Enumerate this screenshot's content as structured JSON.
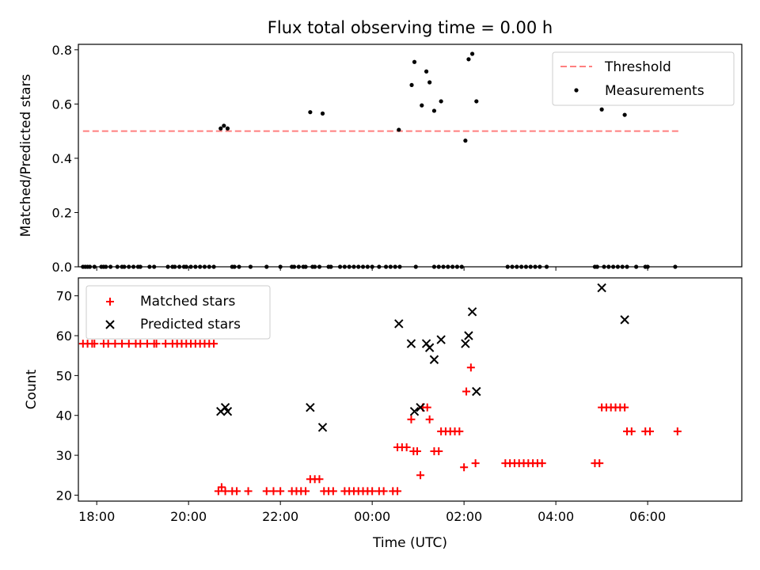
{
  "title": "Flux total observing time = 0.00 h",
  "chart_data": [
    {
      "type": "scatter",
      "panel": "top",
      "ylabel": "Matched/Predicted stars",
      "xlabel": "",
      "x_unit": "hours since 00:00 UTC",
      "xlim": [
        -6.4,
        8.05
      ],
      "ylim": [
        0,
        0.82
      ],
      "yticks": [
        0.0,
        0.2,
        0.4,
        0.6,
        0.8
      ],
      "ytick_labels": [
        "0.0",
        "0.2",
        "0.4",
        "0.6",
        "0.8"
      ],
      "legend_position": "upper right",
      "threshold": {
        "name": "Threshold",
        "value": 0.5,
        "x_range": [
          -6.3,
          6.7
        ],
        "color": "#ff7f7f"
      },
      "series": [
        {
          "name": "Measurements",
          "color": "#000000",
          "points": [
            [
              -6.3,
              0
            ],
            [
              -6.25,
              0
            ],
            [
              -6.2,
              0
            ],
            [
              -6.15,
              0
            ],
            [
              -6.05,
              0
            ],
            [
              -5.9,
              0
            ],
            [
              -5.85,
              0
            ],
            [
              -5.8,
              0
            ],
            [
              -5.7,
              0
            ],
            [
              -5.55,
              0
            ],
            [
              -5.45,
              0
            ],
            [
              -5.4,
              0
            ],
            [
              -5.3,
              0
            ],
            [
              -5.2,
              0
            ],
            [
              -5.1,
              0
            ],
            [
              -5.05,
              0
            ],
            [
              -4.85,
              0
            ],
            [
              -4.75,
              0
            ],
            [
              -4.45,
              0
            ],
            [
              -4.35,
              0
            ],
            [
              -4.3,
              0
            ],
            [
              -4.2,
              0
            ],
            [
              -4.1,
              0
            ],
            [
              -4.05,
              0
            ],
            [
              -3.95,
              0
            ],
            [
              -3.85,
              0
            ],
            [
              -3.75,
              0
            ],
            [
              -3.65,
              0
            ],
            [
              -3.55,
              0
            ],
            [
              -3.45,
              0
            ],
            [
              -3.3,
              0.51
            ],
            [
              -3.23,
              0.52
            ],
            [
              -3.15,
              0.51
            ],
            [
              -3.05,
              0
            ],
            [
              -3.0,
              0
            ],
            [
              -2.9,
              0
            ],
            [
              -2.65,
              0
            ],
            [
              -2.3,
              0
            ],
            [
              -2.0,
              0
            ],
            [
              -1.75,
              0
            ],
            [
              -1.7,
              0
            ],
            [
              -1.6,
              0
            ],
            [
              -1.5,
              0
            ],
            [
              -1.45,
              0
            ],
            [
              -1.3,
              0
            ],
            [
              -1.25,
              0
            ],
            [
              -1.15,
              0
            ],
            [
              -0.95,
              0
            ],
            [
              -0.9,
              0
            ],
            [
              -1.35,
              0.57
            ],
            [
              -1.08,
              0.565
            ],
            [
              -0.7,
              0
            ],
            [
              -0.6,
              0
            ],
            [
              -0.5,
              0
            ],
            [
              -0.4,
              0
            ],
            [
              -0.3,
              0
            ],
            [
              -0.2,
              0
            ],
            [
              -0.1,
              0
            ],
            [
              0.0,
              0
            ],
            [
              0.15,
              0
            ],
            [
              0.3,
              0
            ],
            [
              0.4,
              0
            ],
            [
              0.5,
              0
            ],
            [
              0.6,
              0
            ],
            [
              0.95,
              0
            ],
            [
              1.35,
              0
            ],
            [
              1.45,
              0
            ],
            [
              1.55,
              0
            ],
            [
              1.65,
              0
            ],
            [
              1.75,
              0
            ],
            [
              1.85,
              0
            ],
            [
              1.95,
              0
            ],
            [
              0.58,
              0.505
            ],
            [
              0.86,
              0.67
            ],
            [
              0.92,
              0.755
            ],
            [
              1.08,
              0.595
            ],
            [
              1.18,
              0.72
            ],
            [
              1.25,
              0.68
            ],
            [
              1.35,
              0.575
            ],
            [
              1.5,
              0.61
            ],
            [
              2.03,
              0.465
            ],
            [
              2.1,
              0.765
            ],
            [
              2.18,
              0.785
            ],
            [
              2.27,
              0.61
            ],
            [
              2.95,
              0
            ],
            [
              3.05,
              0
            ],
            [
              3.15,
              0
            ],
            [
              3.25,
              0
            ],
            [
              3.35,
              0
            ],
            [
              3.45,
              0
            ],
            [
              3.55,
              0
            ],
            [
              3.65,
              0
            ],
            [
              3.8,
              0
            ],
            [
              4.85,
              0
            ],
            [
              4.9,
              0
            ],
            [
              5.05,
              0
            ],
            [
              5.15,
              0
            ],
            [
              5.25,
              0
            ],
            [
              5.35,
              0
            ],
            [
              5.45,
              0
            ],
            [
              5.55,
              0
            ],
            [
              5.75,
              0
            ],
            [
              5.95,
              0
            ],
            [
              6.0,
              0
            ],
            [
              6.6,
              0
            ],
            [
              5.0,
              0.58
            ],
            [
              5.5,
              0.56
            ]
          ]
        }
      ]
    },
    {
      "type": "scatter",
      "panel": "bottom",
      "ylabel": "Count",
      "xlabel": "Time (UTC)",
      "x_unit": "hours since 00:00 UTC",
      "xlim": [
        -6.4,
        8.05
      ],
      "ylim": [
        18.5,
        74.5
      ],
      "yticks": [
        20,
        30,
        40,
        50,
        60,
        70
      ],
      "ytick_labels": [
        "20",
        "30",
        "40",
        "50",
        "60",
        "70"
      ],
      "xticks": [
        -6,
        -4,
        -2,
        0,
        2,
        4,
        6
      ],
      "xtick_labels": [
        "18:00",
        "20:00",
        "22:00",
        "00:00",
        "02:00",
        "04:00",
        "06:00"
      ],
      "legend_position": "upper left",
      "series": [
        {
          "name": "Matched stars",
          "color": "#ff0000",
          "marker": "plus",
          "points": [
            [
              -6.3,
              58
            ],
            [
              -6.2,
              58
            ],
            [
              -6.1,
              58
            ],
            [
              -6.05,
              58
            ],
            [
              -5.85,
              58
            ],
            [
              -5.75,
              58
            ],
            [
              -5.6,
              58
            ],
            [
              -5.45,
              58
            ],
            [
              -5.3,
              58
            ],
            [
              -5.15,
              58
            ],
            [
              -5.05,
              58
            ],
            [
              -4.9,
              58
            ],
            [
              -4.75,
              58
            ],
            [
              -4.7,
              58
            ],
            [
              -4.5,
              58
            ],
            [
              -4.35,
              58
            ],
            [
              -4.25,
              58
            ],
            [
              -4.15,
              58
            ],
            [
              -4.05,
              58
            ],
            [
              -3.95,
              58
            ],
            [
              -3.85,
              58
            ],
            [
              -3.75,
              58
            ],
            [
              -3.65,
              58
            ],
            [
              -3.55,
              58
            ],
            [
              -3.45,
              58
            ],
            [
              -3.35,
              21
            ],
            [
              -3.28,
              22
            ],
            [
              -3.2,
              21
            ],
            [
              -3.05,
              21
            ],
            [
              -2.95,
              21
            ],
            [
              -2.7,
              21
            ],
            [
              -2.3,
              21
            ],
            [
              -2.15,
              21
            ],
            [
              -2.0,
              21
            ],
            [
              -1.75,
              21
            ],
            [
              -1.65,
              21
            ],
            [
              -1.55,
              21
            ],
            [
              -1.45,
              21
            ],
            [
              -1.35,
              24
            ],
            [
              -1.25,
              24
            ],
            [
              -1.15,
              24
            ],
            [
              -1.05,
              21
            ],
            [
              -0.95,
              21
            ],
            [
              -0.85,
              21
            ],
            [
              -0.6,
              21
            ],
            [
              -0.5,
              21
            ],
            [
              -0.4,
              21
            ],
            [
              -0.3,
              21
            ],
            [
              -0.2,
              21
            ],
            [
              -0.1,
              21
            ],
            [
              0.0,
              21
            ],
            [
              0.15,
              21
            ],
            [
              0.25,
              21
            ],
            [
              0.45,
              21
            ],
            [
              0.55,
              21
            ],
            [
              0.55,
              32
            ],
            [
              0.65,
              32
            ],
            [
              0.75,
              32
            ],
            [
              0.9,
              31
            ],
            [
              0.98,
              31
            ],
            [
              0.85,
              39
            ],
            [
              1.1,
              42
            ],
            [
              1.2,
              42
            ],
            [
              1.25,
              39
            ],
            [
              1.05,
              25
            ],
            [
              1.35,
              31
            ],
            [
              1.45,
              31
            ],
            [
              1.5,
              36
            ],
            [
              1.6,
              36
            ],
            [
              1.7,
              36
            ],
            [
              1.8,
              36
            ],
            [
              1.9,
              36
            ],
            [
              2.05,
              46
            ],
            [
              2.15,
              52
            ],
            [
              2.0,
              27
            ],
            [
              2.25,
              28
            ],
            [
              2.9,
              28
            ],
            [
              3.0,
              28
            ],
            [
              3.1,
              28
            ],
            [
              3.2,
              28
            ],
            [
              3.3,
              28
            ],
            [
              3.4,
              28
            ],
            [
              3.5,
              28
            ],
            [
              3.6,
              28
            ],
            [
              3.7,
              28
            ],
            [
              4.85,
              28
            ],
            [
              4.95,
              28
            ],
            [
              5.0,
              42
            ],
            [
              5.1,
              42
            ],
            [
              5.2,
              42
            ],
            [
              5.3,
              42
            ],
            [
              5.4,
              42
            ],
            [
              5.5,
              42
            ],
            [
              5.55,
              36
            ],
            [
              5.65,
              36
            ],
            [
              5.95,
              36
            ],
            [
              6.05,
              36
            ],
            [
              6.65,
              36
            ]
          ]
        },
        {
          "name": "Predicted stars",
          "color": "#000000",
          "marker": "x",
          "points": [
            [
              -3.3,
              41
            ],
            [
              -3.2,
              42
            ],
            [
              -3.15,
              41
            ],
            [
              -1.35,
              42
            ],
            [
              -1.08,
              37
            ],
            [
              0.58,
              63
            ],
            [
              0.85,
              58
            ],
            [
              0.92,
              41
            ],
            [
              1.05,
              42
            ],
            [
              1.18,
              58
            ],
            [
              1.25,
              57
            ],
            [
              1.35,
              54
            ],
            [
              1.5,
              59
            ],
            [
              2.03,
              58
            ],
            [
              2.1,
              60
            ],
            [
              2.18,
              66
            ],
            [
              2.27,
              46
            ],
            [
              5.0,
              72
            ],
            [
              5.5,
              64
            ]
          ]
        }
      ]
    }
  ]
}
